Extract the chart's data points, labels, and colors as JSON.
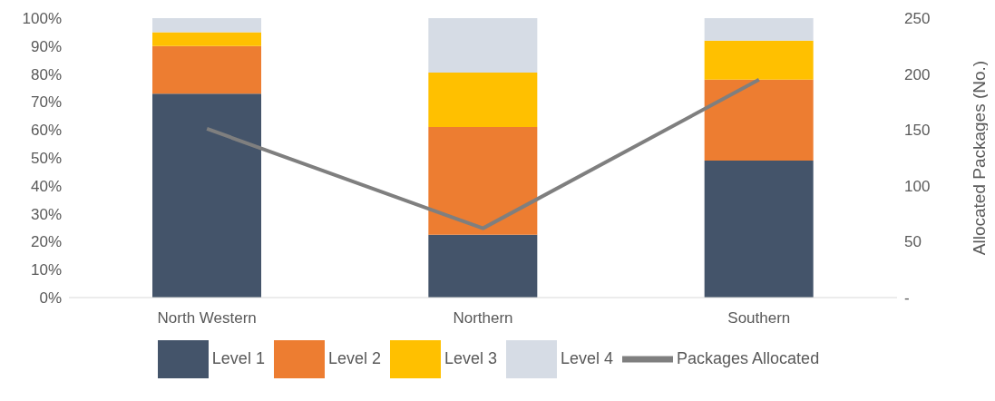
{
  "chart_data": {
    "type": "bar",
    "stacked": true,
    "categories": [
      "North Western",
      "Northern",
      "Southern"
    ],
    "series": [
      {
        "name": "Level 1",
        "color": "#44546a",
        "values": [
          73,
          22.5,
          49
        ]
      },
      {
        "name": "Level 2",
        "color": "#ed7d31",
        "values": [
          17,
          38.5,
          29
        ]
      },
      {
        "name": "Level 3",
        "color": "#ffc000",
        "values": [
          5,
          19.5,
          14
        ]
      },
      {
        "name": "Level 4",
        "color": "#d6dce5",
        "values": [
          5,
          19.5,
          8
        ]
      },
      {
        "name": "Packages Allocated",
        "type": "line",
        "axis": "y2",
        "color": "#7f7f7f",
        "values": [
          151,
          62,
          195
        ]
      }
    ],
    "ylim": [
      0,
      100
    ],
    "yticks": [
      {
        "value": 0,
        "label": "0%"
      },
      {
        "value": 10,
        "label": "10%"
      },
      {
        "value": 20,
        "label": "20%"
      },
      {
        "value": 30,
        "label": "30%"
      },
      {
        "value": 40,
        "label": "40%"
      },
      {
        "value": 50,
        "label": "50%"
      },
      {
        "value": 60,
        "label": "60%"
      },
      {
        "value": 70,
        "label": "70%"
      },
      {
        "value": 80,
        "label": "80%"
      },
      {
        "value": 90,
        "label": "90%"
      },
      {
        "value": 100,
        "label": "100%"
      }
    ],
    "y2lim": [
      0,
      250
    ],
    "y2ticks": [
      {
        "value": 0,
        "label": "-"
      },
      50,
      100,
      150,
      200,
      250
    ],
    "y2label": "Allocated Packages (No.)",
    "legend": "bottom",
    "grid": false,
    "marker": "none"
  }
}
